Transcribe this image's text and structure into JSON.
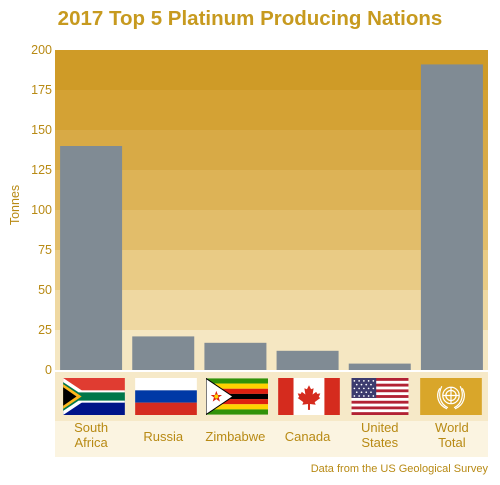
{
  "chart_data": {
    "type": "bar",
    "title": "2017 Top 5 Platinum Producing Nations",
    "ylabel": "Tonnes",
    "xlabel": "",
    "ylim": [
      0,
      200
    ],
    "yticks": [
      0,
      25,
      50,
      75,
      100,
      125,
      150,
      175,
      200
    ],
    "categories": [
      [
        "South",
        "Africa"
      ],
      [
        "Russia"
      ],
      [
        "Zimbabwe"
      ],
      [
        "Canada"
      ],
      [
        "United",
        "States"
      ],
      [
        "World",
        "Total"
      ]
    ],
    "values": [
      140,
      21,
      17,
      12,
      4,
      191
    ],
    "bar_color": "#808B94",
    "band_colors": [
      "#F5E7C2",
      "#EFD8A1",
      "#E9CB85",
      "#E2BD6A",
      "#DDB356",
      "#D8AA46",
      "#D4A234",
      "#CF9B27"
    ],
    "category_icons": [
      "south-africa-flag",
      "russia-flag",
      "zimbabwe-flag",
      "canada-flag",
      "usa-flag",
      "un-emblem"
    ],
    "source": "Data from the US Geological Survey",
    "grid": false,
    "legend": "none"
  }
}
